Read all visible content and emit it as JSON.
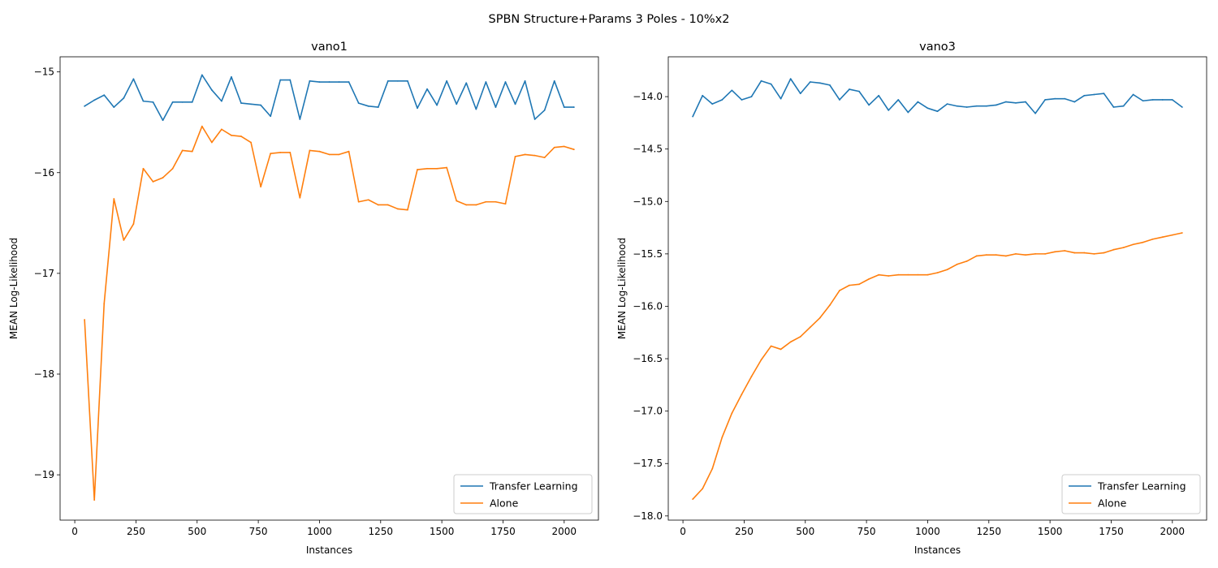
{
  "figure": {
    "title": "SPBN Structure+Params 3 Poles - 10%x2"
  },
  "chart_data": [
    {
      "type": "line",
      "title": "vano1",
      "xlabel": "Instances",
      "ylabel": "MEAN Log-Likelihood",
      "xlim": [
        -60,
        2140
      ],
      "ylim": [
        -19.45,
        -14.85
      ],
      "xticks": [
        0,
        250,
        500,
        750,
        1000,
        1250,
        1500,
        1750,
        2000
      ],
      "yticks": [
        -19,
        -18,
        -17,
        -16,
        -15
      ],
      "xtick_labels": [
        "0",
        "250",
        "500",
        "750",
        "1000",
        "1250",
        "1500",
        "1750",
        "2000"
      ],
      "ytick_labels": [
        "−19",
        "−18",
        "−17",
        "−16",
        "−15"
      ],
      "legend": "lower-right",
      "x": [
        40,
        80,
        120,
        160,
        200,
        240,
        280,
        320,
        360,
        400,
        440,
        480,
        520,
        560,
        600,
        640,
        680,
        720,
        760,
        800,
        840,
        880,
        920,
        960,
        1000,
        1040,
        1080,
        1120,
        1160,
        1200,
        1240,
        1280,
        1320,
        1360,
        1400,
        1440,
        1480,
        1520,
        1560,
        1600,
        1640,
        1680,
        1720,
        1760,
        1800,
        1840,
        1880,
        1920,
        1960,
        2000,
        2040
      ],
      "series": [
        {
          "name": "Transfer Learning",
          "color": "#1f77b4",
          "values": [
            -15.34,
            -15.28,
            -15.23,
            -15.35,
            -15.26,
            -15.07,
            -15.29,
            -15.3,
            -15.48,
            -15.3,
            -15.3,
            -15.3,
            -15.03,
            -15.18,
            -15.29,
            -15.05,
            -15.31,
            -15.32,
            -15.33,
            -15.44,
            -15.08,
            -15.08,
            -15.47,
            -15.09,
            -15.1,
            -15.1,
            -15.1,
            -15.1,
            -15.31,
            -15.34,
            -15.35,
            -15.09,
            -15.09,
            -15.09,
            -15.36,
            -15.17,
            -15.33,
            -15.09,
            -15.32,
            -15.11,
            -15.37,
            -15.1,
            -15.35,
            -15.1,
            -15.32,
            -15.09,
            -15.47,
            -15.38,
            -15.09,
            -15.35,
            -15.35
          ]
        },
        {
          "name": "Alone",
          "color": "#ff7f0e",
          "values": [
            -17.46,
            -19.25,
            -17.3,
            -16.26,
            -16.67,
            -16.51,
            -15.96,
            -16.09,
            -16.05,
            -15.96,
            -15.78,
            -15.79,
            -15.54,
            -15.7,
            -15.57,
            -15.63,
            -15.64,
            -15.7,
            -16.14,
            -15.81,
            -15.8,
            -15.8,
            -16.25,
            -15.78,
            -15.79,
            -15.82,
            -15.82,
            -15.79,
            -16.29,
            -16.27,
            -16.32,
            -16.32,
            -16.36,
            -16.37,
            -15.97,
            -15.96,
            -15.96,
            -15.95,
            -16.28,
            -16.32,
            -16.32,
            -16.29,
            -16.29,
            -16.31,
            -15.84,
            -15.82,
            -15.83,
            -15.85,
            -15.75,
            -15.74,
            -15.77
          ]
        }
      ]
    },
    {
      "type": "line",
      "title": "vano3",
      "xlabel": "Instances",
      "ylabel": "MEAN Log-Likelihood",
      "xlim": [
        -60,
        2140
      ],
      "ylim": [
        -18.04,
        -13.62
      ],
      "xticks": [
        0,
        250,
        500,
        750,
        1000,
        1250,
        1500,
        1750,
        2000
      ],
      "yticks": [
        -18.0,
        -17.5,
        -17.0,
        -16.5,
        -16.0,
        -15.5,
        -15.0,
        -14.5,
        -14.0
      ],
      "xtick_labels": [
        "0",
        "250",
        "500",
        "750",
        "1000",
        "1250",
        "1500",
        "1750",
        "2000"
      ],
      "ytick_labels": [
        "−18.0",
        "−17.5",
        "−17.0",
        "−16.5",
        "−16.0",
        "−15.5",
        "−15.0",
        "−14.5",
        "−14.0"
      ],
      "legend": "lower-right",
      "x": [
        40,
        80,
        120,
        160,
        200,
        240,
        280,
        320,
        360,
        400,
        440,
        480,
        520,
        560,
        600,
        640,
        680,
        720,
        760,
        800,
        840,
        880,
        920,
        960,
        1000,
        1040,
        1080,
        1120,
        1160,
        1200,
        1240,
        1280,
        1320,
        1360,
        1400,
        1440,
        1480,
        1520,
        1560,
        1600,
        1640,
        1680,
        1720,
        1760,
        1800,
        1840,
        1880,
        1920,
        1960,
        2000,
        2040
      ],
      "series": [
        {
          "name": "Transfer Learning",
          "color": "#1f77b4",
          "values": [
            -14.19,
            -13.99,
            -14.07,
            -14.03,
            -13.94,
            -14.03,
            -14.0,
            -13.85,
            -13.88,
            -14.02,
            -13.83,
            -13.97,
            -13.86,
            -13.87,
            -13.89,
            -14.03,
            -13.93,
            -13.95,
            -14.08,
            -13.99,
            -14.13,
            -14.03,
            -14.15,
            -14.05,
            -14.11,
            -14.14,
            -14.07,
            -14.09,
            -14.1,
            -14.09,
            -14.09,
            -14.08,
            -14.05,
            -14.06,
            -14.05,
            -14.16,
            -14.03,
            -14.02,
            -14.02,
            -14.05,
            -13.99,
            -13.98,
            -13.97,
            -14.1,
            -14.09,
            -13.98,
            -14.04,
            -14.03,
            -14.03,
            -14.03,
            -14.1
          ]
        },
        {
          "name": "Alone",
          "color": "#ff7f0e",
          "values": [
            -17.84,
            -17.74,
            -17.55,
            -17.25,
            -17.02,
            -16.84,
            -16.67,
            -16.51,
            -16.38,
            -16.41,
            -16.34,
            -16.29,
            -16.2,
            -16.11,
            -15.99,
            -15.85,
            -15.8,
            -15.79,
            -15.74,
            -15.7,
            -15.71,
            -15.7,
            -15.7,
            -15.7,
            -15.7,
            -15.68,
            -15.65,
            -15.6,
            -15.57,
            -15.52,
            -15.51,
            -15.51,
            -15.52,
            -15.5,
            -15.51,
            -15.5,
            -15.5,
            -15.48,
            -15.47,
            -15.49,
            -15.49,
            -15.5,
            -15.49,
            -15.46,
            -15.44,
            -15.41,
            -15.39,
            -15.36,
            -15.34,
            -15.32,
            -15.3
          ]
        }
      ]
    }
  ]
}
